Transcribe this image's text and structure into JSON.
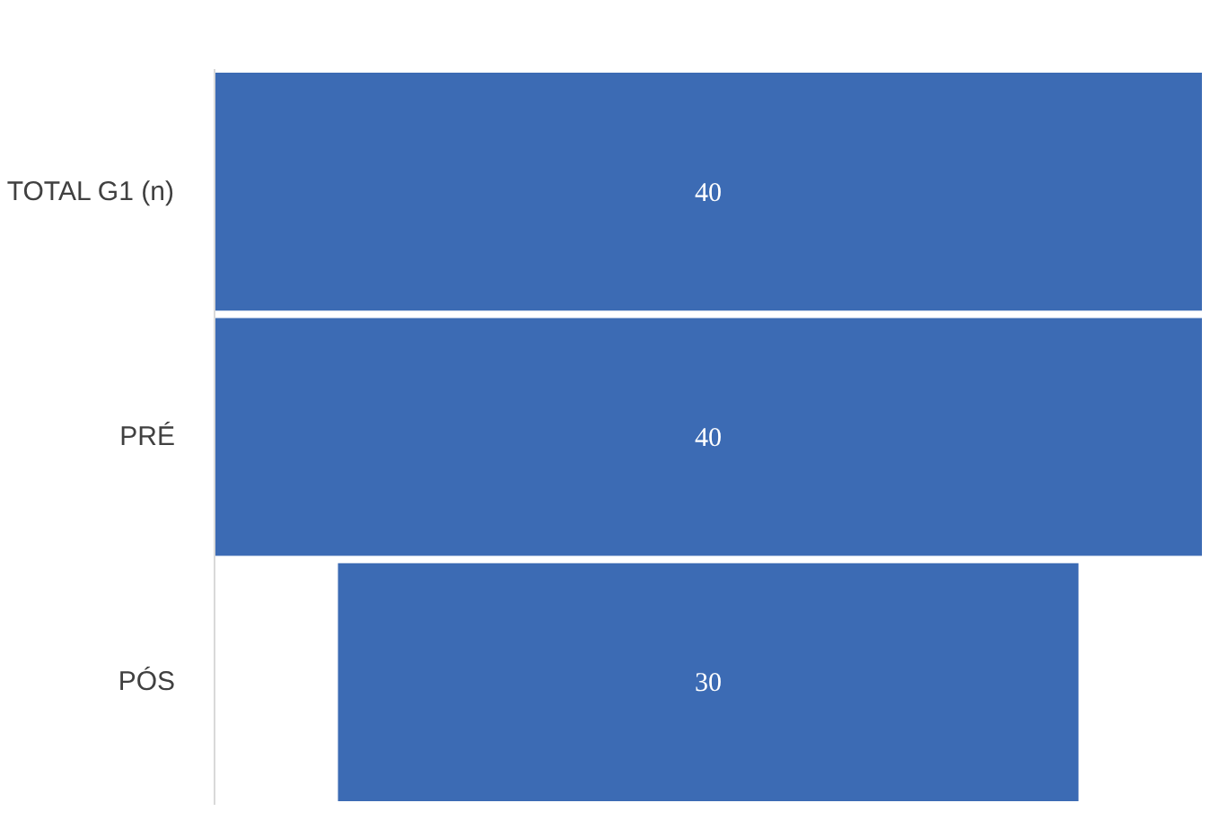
{
  "chart_data": {
    "type": "other",
    "categories": [
      "TOTAL G1 (n)",
      "PRÉ",
      "PÓS"
    ],
    "values": [
      40,
      40,
      30
    ],
    "color": "#3c6bb4",
    "data_labels": true
  }
}
